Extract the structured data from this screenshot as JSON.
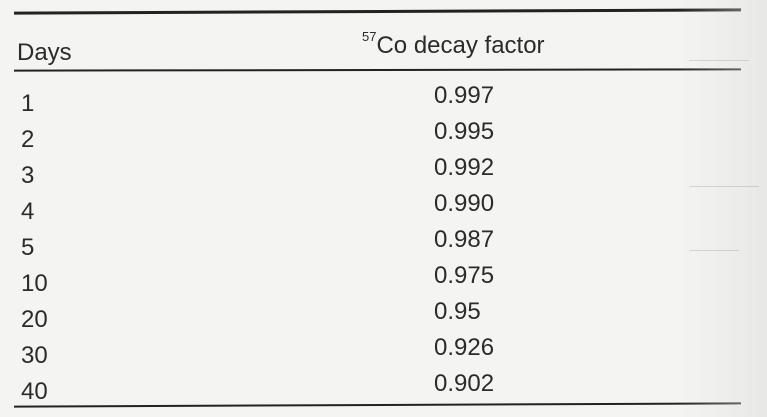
{
  "table": {
    "header": {
      "col1": "Days",
      "col2_sup": "57",
      "col2": "Co decay factor"
    },
    "rows": [
      {
        "days": "1",
        "factor": "0.997"
      },
      {
        "days": "2",
        "factor": "0.995"
      },
      {
        "days": "3",
        "factor": "0.992"
      },
      {
        "days": "4",
        "factor": "0.990"
      },
      {
        "days": "5",
        "factor": "0.987"
      },
      {
        "days": "10",
        "factor": "0.975"
      },
      {
        "days": "20",
        "factor": "0.95"
      },
      {
        "days": "30",
        "factor": "0.926"
      },
      {
        "days": "40",
        "factor": "0.902"
      }
    ]
  }
}
